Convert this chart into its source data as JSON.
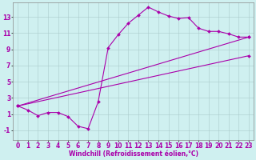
{
  "background_color": "#cff0f0",
  "line_color": "#aa00aa",
  "marker": "D",
  "markersize": 2,
  "linewidth": 0.8,
  "xlabel": "Windchill (Refroidissement éolien,°C)",
  "xlabel_fontsize": 5.5,
  "tick_fontsize": 5.5,
  "xlim": [
    -0.5,
    23.5
  ],
  "ylim": [
    -2.2,
    14.8
  ],
  "yticks": [
    -1,
    1,
    3,
    5,
    7,
    9,
    11,
    13
  ],
  "xticks": [
    0,
    1,
    2,
    3,
    4,
    5,
    6,
    7,
    8,
    9,
    10,
    11,
    12,
    13,
    14,
    15,
    16,
    17,
    18,
    19,
    20,
    21,
    22,
    23
  ],
  "series": [
    {
      "x": [
        0,
        1,
        2,
        3,
        4,
        5,
        6,
        7,
        8,
        9,
        10,
        11,
        12,
        13,
        14,
        15,
        16,
        17,
        18,
        19,
        20,
        21,
        22,
        23
      ],
      "y": [
        2.0,
        1.5,
        0.8,
        1.2,
        1.2,
        0.7,
        -0.5,
        -0.8,
        2.5,
        9.2,
        10.8,
        12.2,
        13.2,
        14.2,
        13.6,
        13.1,
        12.8,
        12.9,
        11.6,
        11.2,
        11.2,
        10.9,
        10.5,
        10.5
      ]
    },
    {
      "x": [
        0,
        23
      ],
      "y": [
        2.0,
        10.5
      ]
    },
    {
      "x": [
        0,
        23
      ],
      "y": [
        2.0,
        8.2
      ]
    }
  ]
}
